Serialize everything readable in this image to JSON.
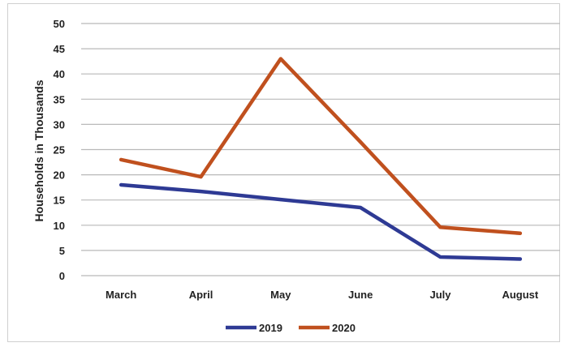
{
  "chart_data": {
    "type": "line",
    "title": "",
    "xlabel": "",
    "ylabel": "Households in Thousands",
    "categories": [
      "March",
      "April",
      "May",
      "June",
      "July",
      "August"
    ],
    "ylim": [
      0,
      50
    ],
    "yticks": [
      0,
      5,
      10,
      15,
      20,
      25,
      30,
      35,
      40,
      45,
      50
    ],
    "grid": true,
    "legend_position": "bottom",
    "series": [
      {
        "name": "2019",
        "color": "#2e3a94",
        "values": [
          18,
          16.7,
          15.1,
          13.5,
          3.7,
          3.3
        ]
      },
      {
        "name": "2020",
        "color": "#c0501e",
        "values": [
          23,
          19.6,
          43,
          26.5,
          9.6,
          8.4
        ]
      }
    ]
  }
}
